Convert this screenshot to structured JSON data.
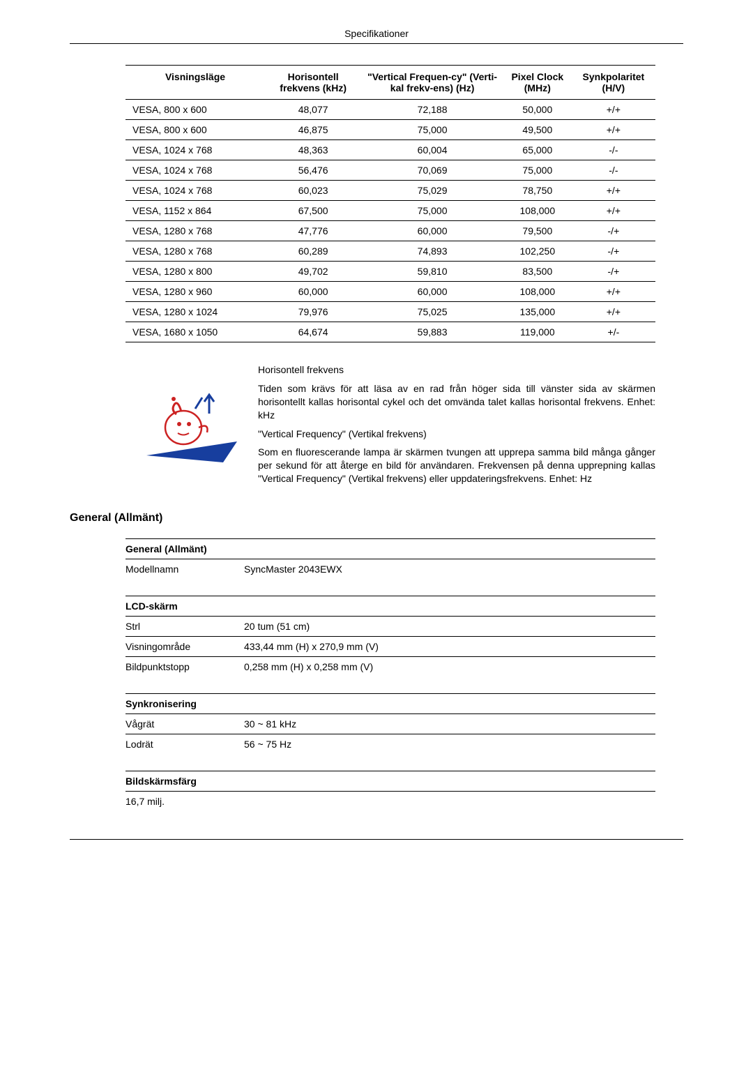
{
  "page_header": "Specifikationer",
  "timing_table": {
    "columns": [
      "Visningsläge",
      "Horisontell frekvens (kHz)",
      "\"Vertical Frequen-cy\" (Verti-kal frekv-ens) (Hz)",
      "Pixel Clock (MHz)",
      "Synkpolaritet (H/V)"
    ],
    "rows": [
      [
        "VESA, 800 x 600",
        "48,077",
        "72,188",
        "50,000",
        "+/+"
      ],
      [
        "VESA, 800 x 600",
        "46,875",
        "75,000",
        "49,500",
        "+/+"
      ],
      [
        "VESA, 1024 x 768",
        "48,363",
        "60,004",
        "65,000",
        "-/-"
      ],
      [
        "VESA, 1024 x 768",
        "56,476",
        "70,069",
        "75,000",
        "-/-"
      ],
      [
        "VESA, 1024 x 768",
        "60,023",
        "75,029",
        "78,750",
        "+/+"
      ],
      [
        "VESA, 1152 x 864",
        "67,500",
        "75,000",
        "108,000",
        "+/+"
      ],
      [
        "VESA, 1280 x 768",
        "47,776",
        "60,000",
        "79,500",
        "-/+"
      ],
      [
        "VESA, 1280 x 768",
        "60,289",
        "74,893",
        "102,250",
        "-/+"
      ],
      [
        "VESA, 1280 x 800",
        "49,702",
        "59,810",
        "83,500",
        "-/+"
      ],
      [
        "VESA, 1280 x 960",
        "60,000",
        "60,000",
        "108,000",
        "+/+"
      ],
      [
        "VESA, 1280 x 1024",
        "79,976",
        "75,025",
        "135,000",
        "+/+"
      ],
      [
        "VESA, 1680 x 1050",
        "64,674",
        "59,883",
        "119,000",
        "+/-"
      ]
    ]
  },
  "info": {
    "p1_title": "Horisontell frekvens",
    "p1_body": "Tiden som krävs för att läsa av en rad från höger sida till vänster sida av skärmen horisontellt kallas horisontal cykel och det omvända talet kallas horisontal frekvens. Enhet: kHz",
    "p2_title": "\"Vertical Frequency\" (Vertikal frekvens)",
    "p2_body": "Som en fluorescerande lampa är skärmen tvungen att upprepa samma bild många gånger per sekund för att återge en bild för användaren. Frekvensen på denna upprepning kallas \"Vertical Frequency\" (Vertikal frekvens) eller uppdateringsfrekvens. Enhet: Hz"
  },
  "general_heading": "General (Allmänt)",
  "general": {
    "section1_title": "General (Allmänt)",
    "section1": [
      [
        "Modellnamn",
        "SyncMaster 2043EWX"
      ]
    ],
    "section2_title": "LCD-skärm",
    "section2": [
      [
        "Strl",
        "20 tum (51 cm)"
      ],
      [
        "Visningområde",
        "433,44 mm (H) x 270,9 mm (V)"
      ],
      [
        "Bildpunktstopp",
        "0,258 mm (H) x 0,258 mm (V)"
      ]
    ],
    "section3_title": "Synkronisering",
    "section3": [
      [
        "Vågrät",
        "30 ~ 81 kHz"
      ],
      [
        "Lodrät",
        "56 ~ 75 Hz"
      ]
    ],
    "section4_title": "Bildskärmsfärg",
    "section4": [
      [
        "16,7 milj.",
        ""
      ]
    ]
  },
  "colors": {
    "text": "#000000",
    "background": "#ffffff",
    "border": "#000000",
    "icon_blue": "#173e9e",
    "icon_red": "#cc2222"
  }
}
